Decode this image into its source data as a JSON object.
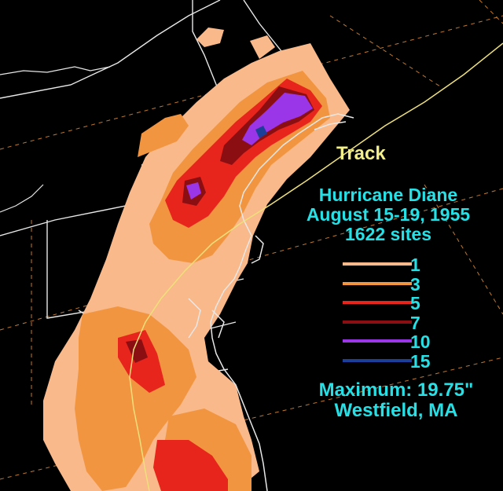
{
  "track_label": "Track",
  "title": {
    "storm": "Hurricane Diane",
    "dates": "August 15-19, 1955",
    "sites": "1622 sites"
  },
  "legend": [
    {
      "label": "1",
      "color": "#f9b98a"
    },
    {
      "label": "3",
      "color": "#f29540"
    },
    {
      "label": "5",
      "color": "#e8251c"
    },
    {
      "label": "7",
      "color": "#8b0f12"
    },
    {
      "label": "10",
      "color": "#9b35e8"
    },
    {
      "label": "15",
      "color": "#1c3f9a"
    }
  ],
  "maximum": {
    "line": "Maximum:  19.75\"",
    "location": "Westfield, MA"
  },
  "colors": {
    "background": "#000000",
    "text": "#26e0e6",
    "track_label": "#f3f08a",
    "track_line": "#efe07a",
    "borders": "#e8e8e8",
    "grid": "#c07a30"
  }
}
